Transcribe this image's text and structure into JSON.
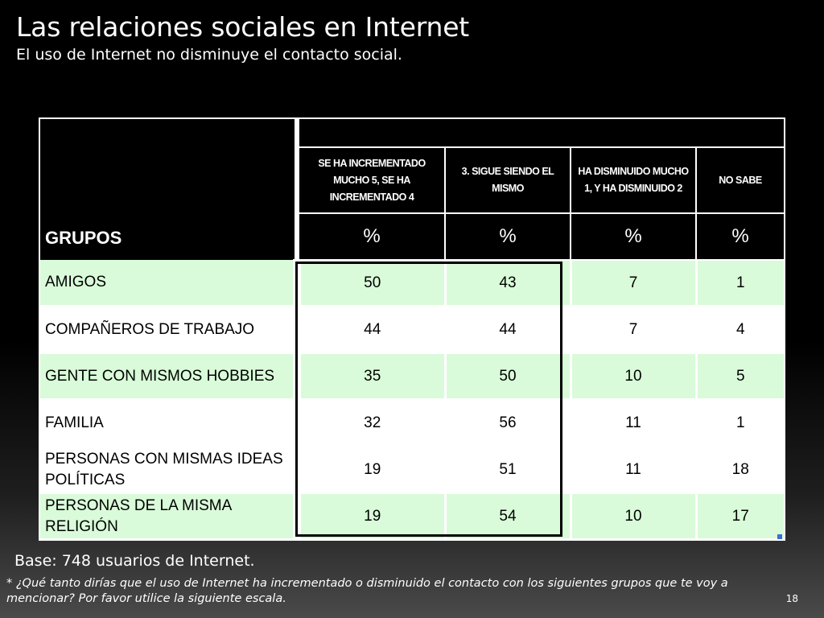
{
  "slide": {
    "title": "Las relaciones sociales en Internet",
    "subtitle": "El uso de Internet no disminuye el contacto social.",
    "base": "Base: 748 usuarios de Internet.",
    "footnote": "* ¿Qué tanto dirías que el  uso de Internet ha incrementado o disminuido el contacto con los siguientes grupos que te voy a mencionar? Por favor utilice la siguiente escala.",
    "page_number": "18"
  },
  "table": {
    "row_header": "GRUPOS",
    "columns": [
      "SE HA INCREMENTADO MUCHO 5, SE HA INCREMENTADO 4",
      "3. SIGUE SIENDO EL MISMO",
      "HA DISMINUIDO MUCHO 1, Y HA DISMINUIDO 2",
      "NO SABE"
    ],
    "units": [
      "%",
      "%",
      "%",
      "%"
    ],
    "rows": [
      {
        "label": "AMIGOS",
        "values": [
          "50",
          "43",
          "7",
          "1"
        ]
      },
      {
        "label": "COMPAÑEROS DE TRABAJO",
        "values": [
          "44",
          "44",
          "7",
          "4"
        ]
      },
      {
        "label": "GENTE CON MISMOS HOBBIES",
        "values": [
          "35",
          "50",
          "10",
          "5"
        ]
      },
      {
        "label": "FAMILIA",
        "values": [
          "32",
          "56",
          "11",
          "1"
        ]
      },
      {
        "label": "PERSONAS CON MISMAS IDEAS POLÍTICAS",
        "values": [
          "19",
          "51",
          "11",
          "18"
        ]
      },
      {
        "label": "PERSONAS DE LA MISMA RELIGIÓN",
        "values": [
          "19",
          "54",
          "10",
          "17"
        ]
      }
    ]
  },
  "colors": {
    "background": "#000000",
    "row_green": "#d9fbd9",
    "row_white": "#ffffff",
    "highlight_border": "#000000"
  }
}
